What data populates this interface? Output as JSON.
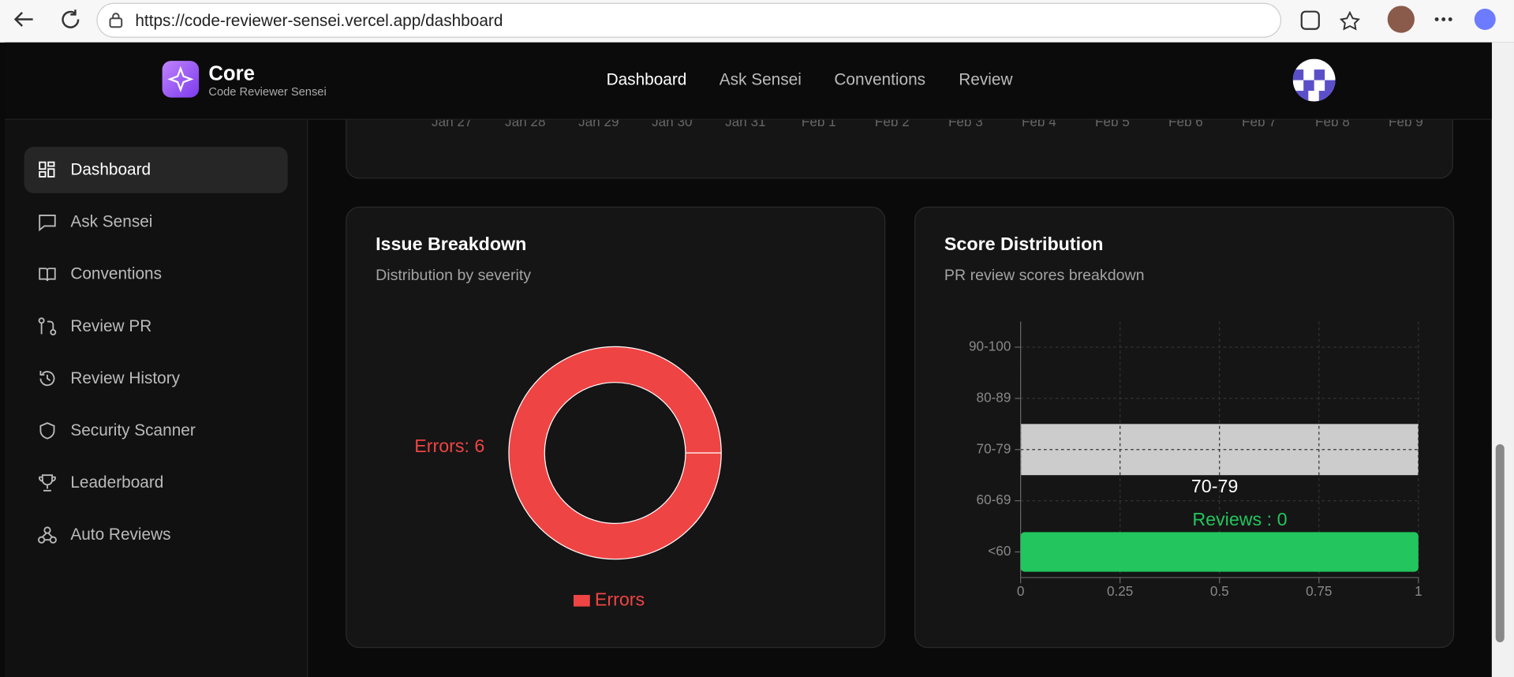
{
  "browser": {
    "url": "https://code-reviewer-sensei.vercel.app/dashboard"
  },
  "header": {
    "brand": "Core",
    "tagline": "Code Reviewer Sensei",
    "nav": [
      "Dashboard",
      "Ask Sensei",
      "Conventions",
      "Review"
    ]
  },
  "sidebar": {
    "items": [
      "Dashboard",
      "Ask Sensei",
      "Conventions",
      "Review PR",
      "Review History",
      "Security Scanner",
      "Leaderboard",
      "Auto Reviews"
    ]
  },
  "activity_chart": {
    "x_labels": [
      "Jan 27",
      "Jan 28",
      "Jan 29",
      "Jan 30",
      "Jan 31",
      "Feb 1",
      "Feb 2",
      "Feb 3",
      "Feb 4",
      "Feb 5",
      "Feb 6",
      "Feb 7",
      "Feb 8",
      "Feb 9"
    ]
  },
  "chart_data": [
    {
      "type": "pie",
      "title": "Issue Breakdown",
      "subtitle": "Distribution by severity",
      "categories": [
        "Errors"
      ],
      "values": [
        6
      ],
      "value_labels": [
        "Errors: 6"
      ],
      "colors": [
        "#ef4444"
      ],
      "legend": "bottom"
    },
    {
      "type": "hbar",
      "title": "Score Distribution",
      "subtitle": "PR review scores breakdown",
      "categories": [
        "90-100",
        "80-89",
        "70-79",
        "60-69",
        "<60"
      ],
      "series": [
        {
          "name": "Reviews",
          "color": "#22c55e",
          "values": [
            0,
            0,
            0,
            0,
            1
          ]
        }
      ],
      "xlim": [
        0,
        1
      ],
      "xticks": [
        0,
        0.25,
        0.5,
        0.75,
        1
      ],
      "grid": true,
      "tooltip": {
        "label": "70-79",
        "text": "Reviews : 0"
      }
    }
  ]
}
